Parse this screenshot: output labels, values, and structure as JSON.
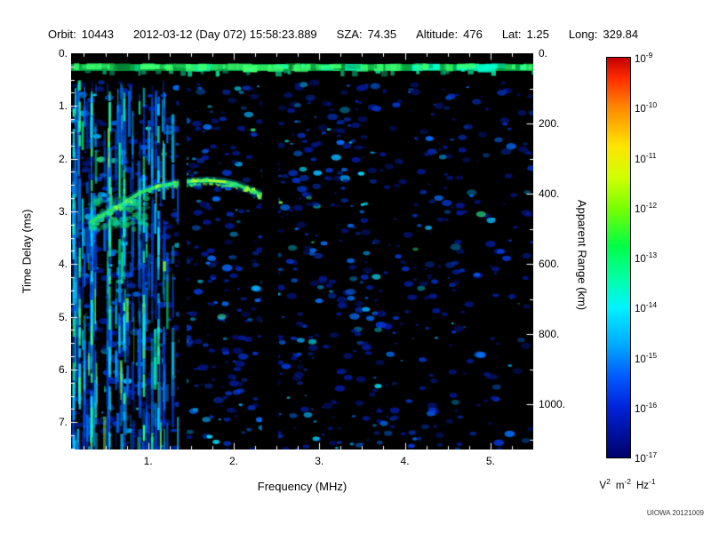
{
  "header": {
    "fields": [
      {
        "label": "Orbit:",
        "value": "10443"
      },
      {
        "label": "",
        "value": "2012-03-12 (Day 072) 15:58:23.889"
      },
      {
        "label": "SZA:",
        "value": "74.35"
      },
      {
        "label": "Altitude:",
        "value": "476"
      },
      {
        "label": "Lat:",
        "value": "1.25"
      },
      {
        "label": "Long:",
        "value": "329.84"
      }
    ]
  },
  "watermark": "UIOWA 20121009",
  "chart_data": {
    "type": "heatmap",
    "title": "",
    "xlabel": "Frequency (MHz)",
    "ylabel": "Time Delay (ms)",
    "ylabel_right": "Apparent Range (km)",
    "x_range_mhz": [
      0.1,
      5.5
    ],
    "x_ticks": [
      {
        "value": 1,
        "label": "1."
      },
      {
        "value": 2,
        "label": "2."
      },
      {
        "value": 3,
        "label": "3."
      },
      {
        "value": 4,
        "label": "4."
      },
      {
        "value": 5,
        "label": "5."
      }
    ],
    "y_range_ms": [
      0,
      7.52
    ],
    "y_ticks": [
      {
        "value": 0,
        "label": "0."
      },
      {
        "value": 1,
        "label": "1."
      },
      {
        "value": 2,
        "label": "2."
      },
      {
        "value": 3,
        "label": "3."
      },
      {
        "value": 4,
        "label": "4."
      },
      {
        "value": 5,
        "label": "5."
      },
      {
        "value": 6,
        "label": "6."
      },
      {
        "value": 7,
        "label": "7."
      }
    ],
    "y_right_range_km": [
      0,
      1128
    ],
    "y_right_ticks": [
      {
        "value": 0,
        "label": "0."
      },
      {
        "value": 200,
        "label": "200."
      },
      {
        "value": 400,
        "label": "400."
      },
      {
        "value": 600,
        "label": "600."
      },
      {
        "value": 800,
        "label": "800."
      },
      {
        "value": 1000,
        "label": "1000."
      }
    ],
    "colorbar": {
      "scale": "log",
      "tick_exponents": [
        -9,
        -10,
        -11,
        -12,
        -13,
        -14,
        -15,
        -16,
        -17
      ],
      "unit_parts": [
        {
          "base": "V",
          "exp": "2"
        },
        {
          "base": "m",
          "exp": "-2"
        },
        {
          "base": "Hz",
          "exp": "-1"
        }
      ],
      "gradient_stops": [
        [
          0,
          "#c40000"
        ],
        [
          0.05,
          "#ff2a00"
        ],
        [
          0.125,
          "#ff8800"
        ],
        [
          0.22,
          "#ffe400"
        ],
        [
          0.3,
          "#d0ff00"
        ],
        [
          0.375,
          "#7aff00"
        ],
        [
          0.47,
          "#00ff44"
        ],
        [
          0.56,
          "#00ffb0"
        ],
        [
          0.625,
          "#00f2ff"
        ],
        [
          0.72,
          "#00a8ff"
        ],
        [
          0.8,
          "#0058ff"
        ],
        [
          0.875,
          "#0022d8"
        ],
        [
          1,
          "#00006a"
        ]
      ]
    },
    "features": {
      "plot_bg": "#000000",
      "transmit_band": {
        "time_delay_ms": 0.27,
        "thickness_ms": 0.13,
        "color": "#00a844",
        "bright_color": "#3dff6e"
      },
      "ionospheric_echo_trace": {
        "points_mhz_ms": [
          [
            0.33,
            3.2
          ],
          [
            0.5,
            3.04
          ],
          [
            0.7,
            2.86
          ],
          [
            0.9,
            2.65
          ],
          [
            1.1,
            2.53
          ],
          [
            1.3,
            2.47
          ],
          [
            1.5,
            2.43
          ],
          [
            1.7,
            2.41
          ],
          [
            1.9,
            2.44
          ],
          [
            2.05,
            2.5
          ],
          [
            2.2,
            2.6
          ],
          [
            2.35,
            2.7
          ],
          [
            2.5,
            2.8
          ]
        ],
        "color": "#2ae05f",
        "halo_color": "#00c8ff",
        "hot_color": "#c6ff2e",
        "hot_range_mhz": [
          1.45,
          2.0
        ]
      },
      "cusp_cloud": {
        "range_mhz": [
          0.33,
          1.0
        ],
        "range_ms": [
          2.75,
          3.35
        ]
      },
      "low_freq_interference": {
        "range_mhz": [
          0.1,
          1.35
        ],
        "stripe_count": 62,
        "strong_stripes_mhz": [
          0.13,
          0.2,
          0.34,
          0.55,
          0.72,
          0.95,
          1.12
        ]
      },
      "blank_bands_mhz": [
        [
          1.36,
          1.45
        ],
        [
          2.33,
          2.52
        ]
      ],
      "noise": {
        "seed": 10443,
        "blob_count": 1700,
        "palette": [
          "#001a9a",
          "#0038d8",
          "#0070ff",
          "#00b4ff",
          "#00e8ff",
          "#38ff9c"
        ]
      }
    }
  }
}
